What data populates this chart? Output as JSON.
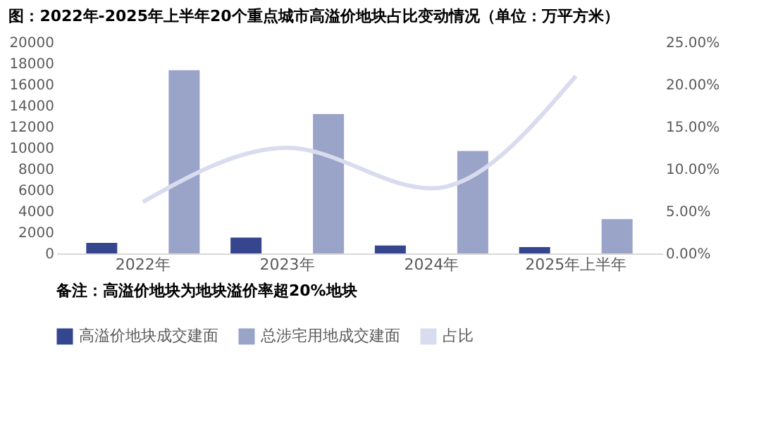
{
  "chart_data": {
    "type": "bar",
    "title": "图：2022年-2025年上半年20个重点城市高溢价地块占比变动情况（单位：万平方米）",
    "categories": [
      "2022年",
      "2023年",
      "2024年",
      "2025年上半年"
    ],
    "series": [
      {
        "name": "高溢价地块成交建面",
        "color": "#35468f",
        "values": [
          1000,
          1500,
          750,
          600
        ]
      },
      {
        "name": "总涉宅用地成交建面",
        "color": "#9aa4c8",
        "values": [
          17350,
          13200,
          9700,
          3250
        ]
      },
      {
        "name": "占比",
        "type": "line",
        "axis": "y2",
        "color": "#d9dcef",
        "values": [
          6.1,
          12.5,
          7.7,
          21.0
        ]
      }
    ],
    "ylim": [
      0,
      20000
    ],
    "yticks": [
      0,
      2000,
      4000,
      6000,
      8000,
      10000,
      12000,
      14000,
      16000,
      18000,
      20000
    ],
    "y2lim": [
      0,
      25
    ],
    "y2ticks": [
      {
        "value": 0,
        "label": "0.00%"
      },
      {
        "value": 5,
        "label": "5.00%"
      },
      {
        "value": 10,
        "label": "10.00%"
      },
      {
        "value": 15,
        "label": "15.00%"
      },
      {
        "value": 20,
        "label": "20.00%"
      },
      {
        "value": 25,
        "label": "25.00%"
      }
    ],
    "grid": false,
    "legend": "bottom",
    "annotations": [
      "备注：高溢价地块为地块溢价率超20%地块"
    ]
  }
}
